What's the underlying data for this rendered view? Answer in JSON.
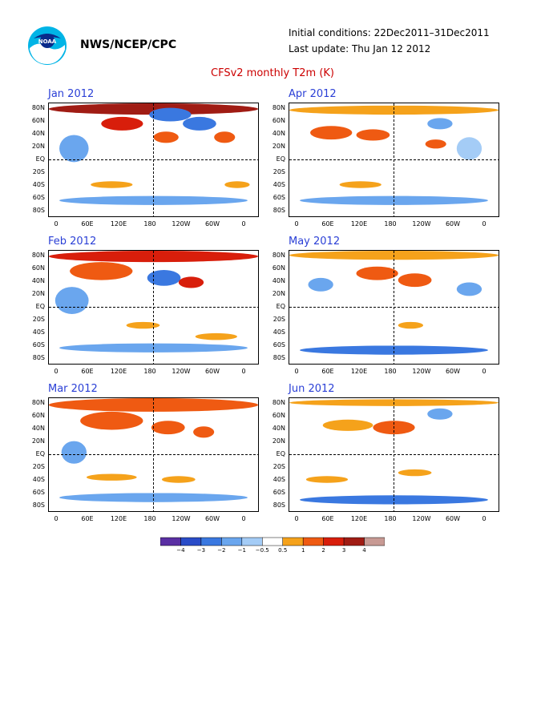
{
  "header": {
    "org": "NWS/NCEP/CPC",
    "initial_conditions": "Initial conditions: 22Dec2011–31Dec2011",
    "last_update": "Last update: Thu Jan 12 2012",
    "title": "CFSv2 monthly T2m (K)"
  },
  "logo": {
    "text": "NOAA"
  },
  "lat_labels": [
    "80N",
    "60N",
    "40N",
    "20N",
    "EQ",
    "20S",
    "40S",
    "60S",
    "80S"
  ],
  "lon_labels": [
    "0",
    "60E",
    "120E",
    "180",
    "120W",
    "60W",
    "0"
  ],
  "panels": [
    {
      "title": "Jan 2012"
    },
    {
      "title": "Apr 2012"
    },
    {
      "title": "Feb 2012"
    },
    {
      "title": "May 2012"
    },
    {
      "title": "Mar 2012"
    },
    {
      "title": "Jun 2012"
    }
  ],
  "colorbar": {
    "labels": [
      "−4",
      "−3",
      "−2",
      "−1",
      "−0.5",
      "0.5",
      "1",
      "2",
      "3",
      "4"
    ],
    "colors": [
      "#5a2fa3",
      "#2a4cc8",
      "#3a78e0",
      "#6aa6ee",
      "#a4ccf6",
      "#ffffff",
      "#f5a21b",
      "#ef5a12",
      "#d81e0b",
      "#a01c14",
      "#c89a94"
    ]
  },
  "colors": {
    "title_red": "#cc0000",
    "panel_title_blue": "#2a3fd6"
  }
}
